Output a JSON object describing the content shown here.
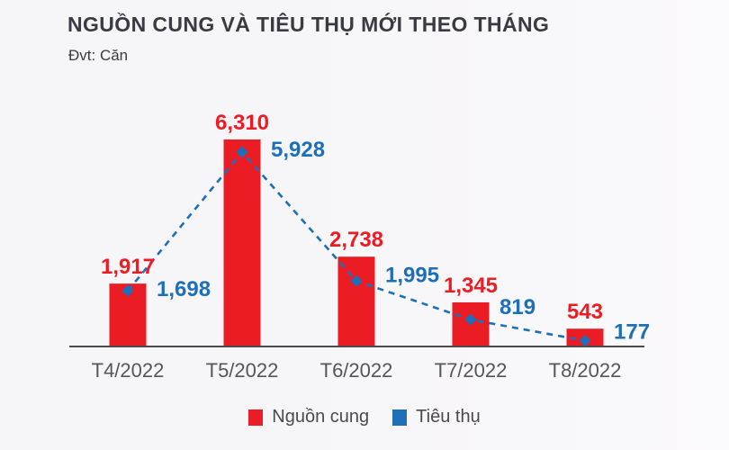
{
  "chart_data": {
    "type": "bar",
    "title": "NGUỒN CUNG VÀ TIÊU THỤ MỚI THEO THÁNG",
    "subtitle": "Đvt: Căn",
    "categories": [
      "T4/2022",
      "T5/2022",
      "T6/2022",
      "T7/2022",
      "T8/2022"
    ],
    "series": [
      {
        "name": "Nguồn cung",
        "type": "bar",
        "color": "#ec1c24",
        "values": [
          1917,
          6310,
          2738,
          1345,
          543
        ],
        "labels": [
          "1,917",
          "6,310",
          "2,738",
          "1,345",
          "543"
        ]
      },
      {
        "name": "Tiêu thụ",
        "type": "line",
        "line_style": "dashed",
        "marker": "diamond",
        "color": "#1c6fb8",
        "values": [
          1698,
          5928,
          1995,
          819,
          177
        ],
        "labels": [
          "1,698",
          "5,928",
          "1,995",
          "819",
          "177"
        ]
      }
    ],
    "xlabel": "",
    "ylabel": "",
    "ylim": [
      0,
      6700
    ],
    "grid": false,
    "legend_position": "bottom",
    "value_labels": true,
    "axis_line_color": "#4a4a4a"
  }
}
